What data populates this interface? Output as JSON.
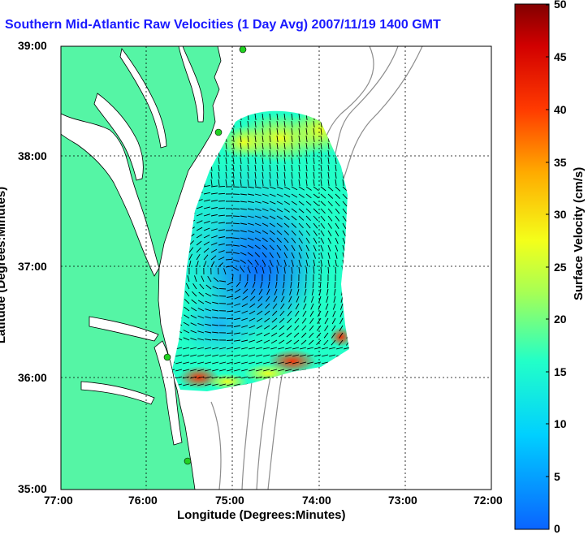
{
  "title": "Southern Mid-Atlantic Raw Velocities (1 Day Avg) 2007/11/19 1400 GMT",
  "xlabel": "Longitude (Degrees:Minutes)",
  "ylabel": "Latitude (Degrees:Minutes)",
  "x_ticks": [
    "77:00",
    "76:00",
    "75:00",
    "74:00",
    "73:00",
    "72:00"
  ],
  "y_ticks": [
    "39:00",
    "38:00",
    "37:00",
    "36:00",
    "35:00"
  ],
  "colorbar": {
    "label": "Surface Velocity (cm/s)",
    "ticks": [
      "50",
      "45",
      "40",
      "35",
      "30",
      "25",
      "20",
      "15",
      "10",
      "5",
      "0"
    ],
    "min": 0,
    "max": 50,
    "colormap": "jet"
  },
  "colors": {
    "land": "#55f5a5",
    "water": "#ffffff",
    "coast": "#000000",
    "bathymetry": "#8c8c8c",
    "station": "#22d022",
    "title": "#1a1aff"
  },
  "chart_data": {
    "type": "heatmap",
    "title": "Southern Mid-Atlantic Raw Velocities (1 Day Avg) 2007/11/19 1400 GMT",
    "xlabel": "Longitude (Degrees:Minutes)",
    "ylabel": "Latitude (Degrees:Minutes)",
    "xlim": [
      -77,
      -72
    ],
    "ylim": [
      35,
      39
    ],
    "value_range": [
      0,
      50
    ],
    "units": "cm/s",
    "grid": true,
    "stations": [
      {
        "lon": -75.08,
        "lat": 39.0
      },
      {
        "lon": -75.08,
        "lat": 38.23
      },
      {
        "lon": -75.7,
        "lat": 36.18
      },
      {
        "lon": -75.5,
        "lat": 35.25
      }
    ],
    "speed_field": [
      {
        "lon": -74.75,
        "lat": 38.15,
        "speed": 22
      },
      {
        "lon": -74.2,
        "lat": 38.1,
        "speed": 24
      },
      {
        "lon": -74.5,
        "lat": 37.9,
        "speed": 18
      },
      {
        "lon": -74.9,
        "lat": 37.5,
        "speed": 12
      },
      {
        "lon": -75.1,
        "lat": 37.0,
        "speed": 9
      },
      {
        "lon": -74.9,
        "lat": 36.9,
        "speed": 5
      },
      {
        "lon": -74.4,
        "lat": 36.7,
        "speed": 7
      },
      {
        "lon": -75.4,
        "lat": 36.5,
        "speed": 10
      },
      {
        "lon": -74.1,
        "lat": 37.4,
        "speed": 13
      },
      {
        "lon": -74.0,
        "lat": 36.45,
        "speed": 30
      },
      {
        "lon": -74.3,
        "lat": 36.15,
        "speed": 36
      },
      {
        "lon": -75.45,
        "lat": 36.0,
        "speed": 34
      },
      {
        "lon": -75.0,
        "lat": 36.05,
        "speed": 16
      }
    ]
  }
}
